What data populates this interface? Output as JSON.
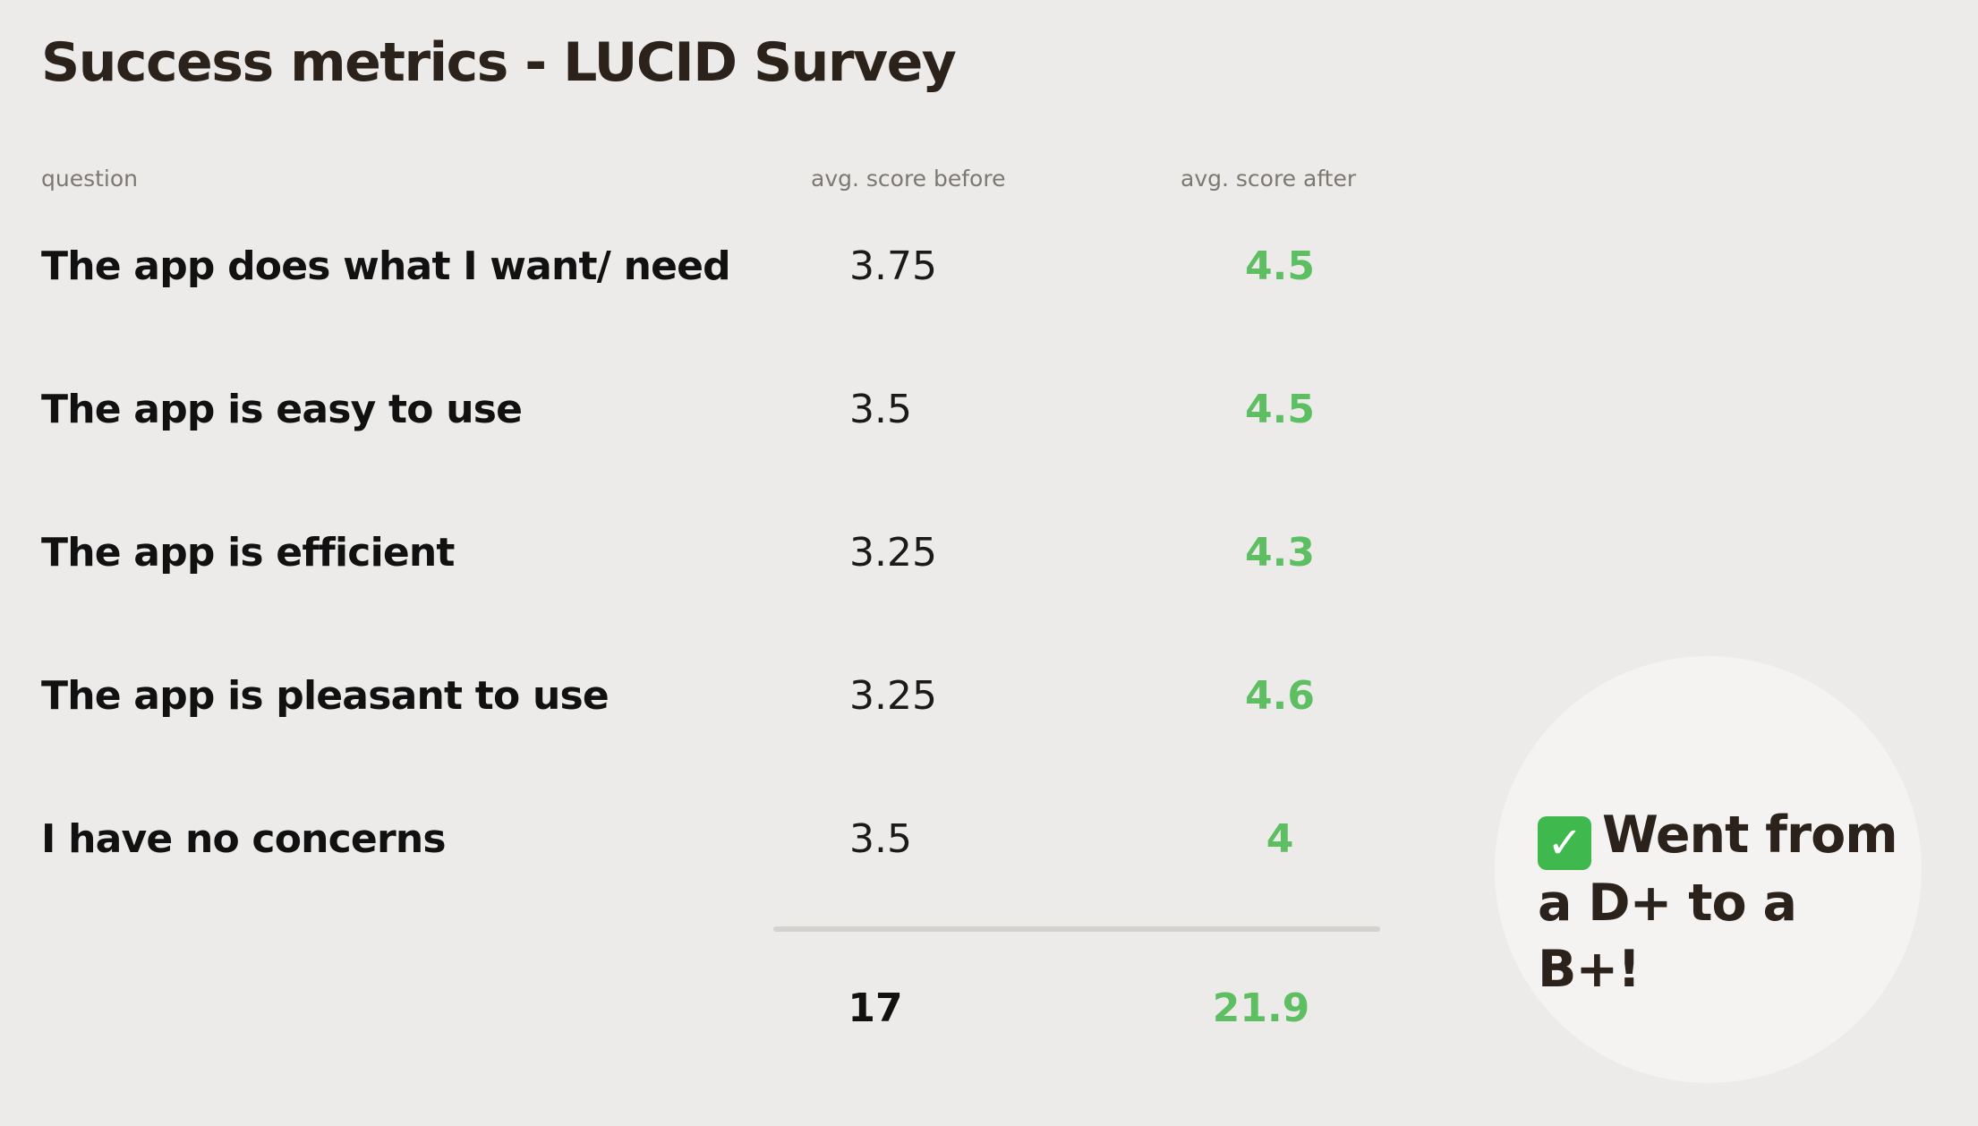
{
  "page": {
    "title": "Success metrics - LUCID Survey"
  },
  "table": {
    "headers": {
      "question": "question",
      "before": "avg. score before",
      "after": "avg. score after"
    },
    "rows": [
      {
        "question": "The app does what I want/ need",
        "before": "3.75",
        "after": "4.5"
      },
      {
        "question": "The app is easy to use",
        "before": "3.5",
        "after": "4.5"
      },
      {
        "question": "The app is efficient",
        "before": "3.25",
        "after": "4.3"
      },
      {
        "question": "The app is pleasant to use",
        "before": "3.25",
        "after": "4.6"
      },
      {
        "question": "I have no concerns",
        "before": "3.5",
        "after": "4"
      }
    ],
    "totals": {
      "before": "17",
      "after": "21.9"
    }
  },
  "callout": {
    "icon": "check-mark-icon",
    "text": "Went from a D+ to a B+!"
  },
  "colors": {
    "background": "#ecebe9",
    "heading": "#2a221b",
    "positive": "#5dbe62",
    "callout_bg": "#f4f3f2",
    "divider": "#d4d2cf"
  }
}
